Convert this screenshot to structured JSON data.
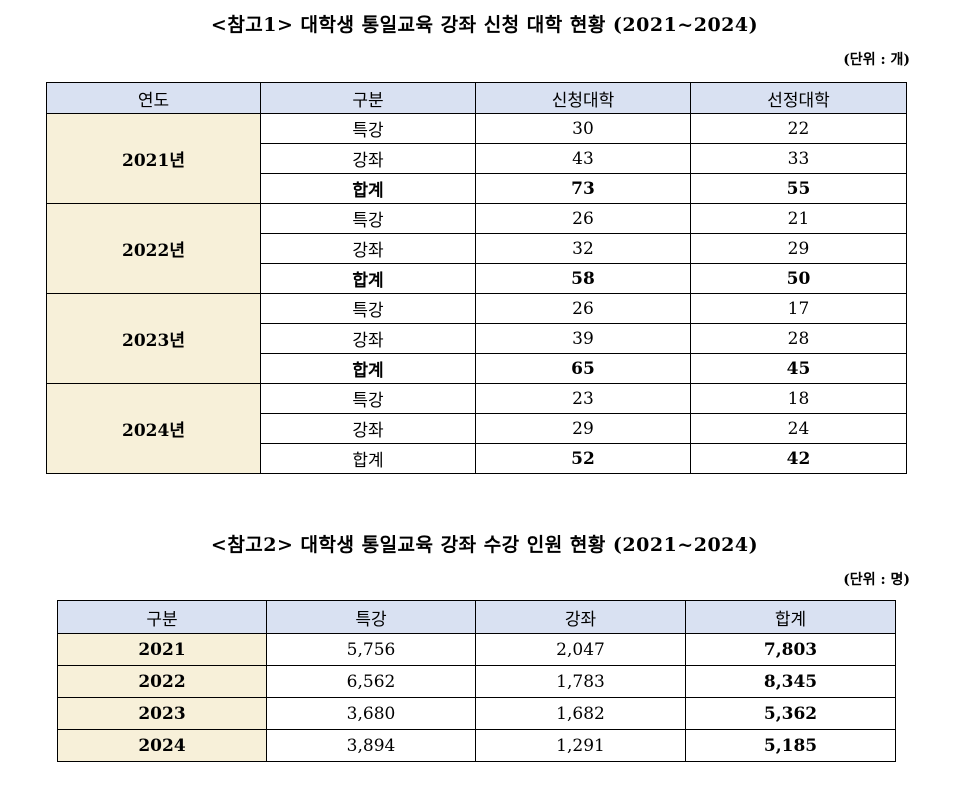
{
  "section1": {
    "title": "<참고1> 대학생 통일교육 강좌 신청 대학 현황 (2021~2024)",
    "unit": "(단위 : 개)",
    "headers": [
      "연도",
      "구분",
      "신청대학",
      "선정대학"
    ],
    "groups": [
      {
        "year": "2021년",
        "rows": [
          {
            "type": "특강",
            "applied": "30",
            "selected": "22"
          },
          {
            "type": "강좌",
            "applied": "43",
            "selected": "33"
          },
          {
            "type": "합계",
            "applied": "73",
            "selected": "55"
          }
        ]
      },
      {
        "year": "2022년",
        "rows": [
          {
            "type": "특강",
            "applied": "26",
            "selected": "21"
          },
          {
            "type": "강좌",
            "applied": "32",
            "selected": "29"
          },
          {
            "type": "합계",
            "applied": "58",
            "selected": "50"
          }
        ]
      },
      {
        "year": "2023년",
        "rows": [
          {
            "type": "특강",
            "applied": "26",
            "selected": "17"
          },
          {
            "type": "강좌",
            "applied": "39",
            "selected": "28"
          },
          {
            "type": "합계",
            "applied": "65",
            "selected": "45"
          }
        ]
      },
      {
        "year": "2024년",
        "rows": [
          {
            "type": "특강",
            "applied": "23",
            "selected": "18"
          },
          {
            "type": "강좌",
            "applied": "29",
            "selected": "24"
          },
          {
            "type": "합계",
            "applied": "52",
            "selected": "42"
          }
        ]
      }
    ]
  },
  "section2": {
    "title": "<참고2> 대학생 통일교육 강좌 수강 인원 현황 (2021~2024)",
    "unit": "(단위 : 명)",
    "headers": [
      "구분",
      "특강",
      "강좌",
      "합계"
    ],
    "rows": [
      {
        "year": "2021",
        "lecture": "5,756",
        "course": "2,047",
        "total": "7,803"
      },
      {
        "year": "2022",
        "lecture": "6,562",
        "course": "1,783",
        "total": "8,345"
      },
      {
        "year": "2023",
        "lecture": "3,680",
        "course": "1,682",
        "total": "5,362"
      },
      {
        "year": "2024",
        "lecture": "3,894",
        "course": "1,291",
        "total": "5,185"
      }
    ]
  }
}
